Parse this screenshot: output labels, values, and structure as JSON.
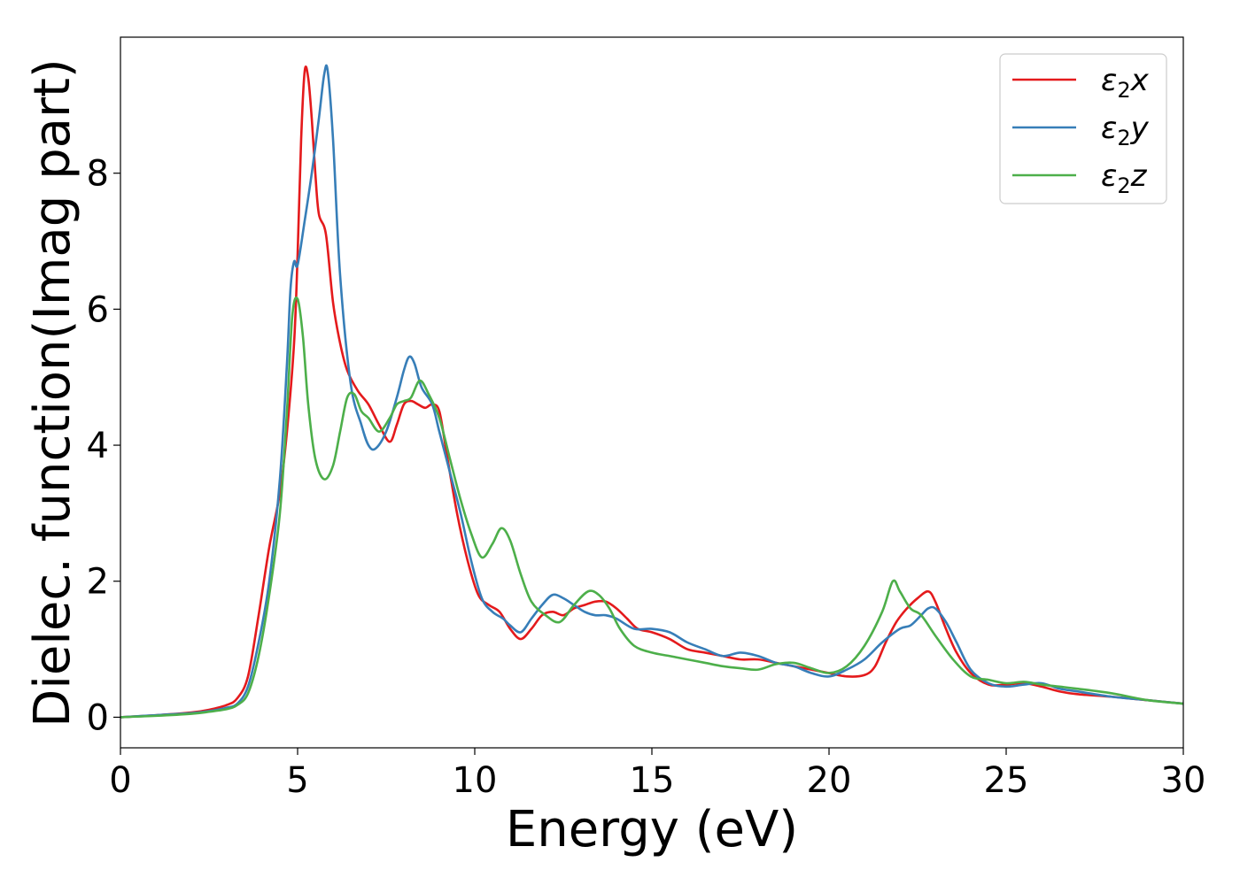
{
  "chart_data": {
    "type": "line",
    "xlabel": "Energy (eV)",
    "ylabel": "Dielec. function(Imag part)",
    "xlim": [
      0,
      30
    ],
    "ylim": [
      -0.45,
      10.0
    ],
    "xticks": [
      0,
      5,
      10,
      15,
      20,
      25,
      30
    ],
    "xtick_labels": [
      "0",
      "5",
      "10",
      "15",
      "20",
      "25",
      "30"
    ],
    "yticks": [
      0,
      2,
      4,
      6,
      8
    ],
    "ytick_labels": [
      "0",
      "2",
      "4",
      "6",
      "8"
    ],
    "grid": false,
    "legend_position": "top-right",
    "series": [
      {
        "name": "ε₂x",
        "legend_main": "ε",
        "legend_sub": "2",
        "legend_var": "x",
        "color": "#e41a1c",
        "x": [
          0,
          1,
          2,
          2.5,
          3,
          3.3,
          3.6,
          3.9,
          4.2,
          4.5,
          4.7,
          4.9,
          5.0,
          5.1,
          5.2,
          5.3,
          5.4,
          5.5,
          5.6,
          5.8,
          6.0,
          6.2,
          6.4,
          6.7,
          7.0,
          7.3,
          7.6,
          7.8,
          8.0,
          8.2,
          8.4,
          8.6,
          8.8,
          9.0,
          9.2,
          9.5,
          9.8,
          10.1,
          10.4,
          10.7,
          11.0,
          11.3,
          11.6,
          11.9,
          12.2,
          12.5,
          12.8,
          13.1,
          13.4,
          13.7,
          14.0,
          14.3,
          14.6,
          15.0,
          15.5,
          16.0,
          16.5,
          17.0,
          17.5,
          18.0,
          18.5,
          19.0,
          19.5,
          20.0,
          20.5,
          21.0,
          21.3,
          21.6,
          21.9,
          22.2,
          22.5,
          22.8,
          23.0,
          23.3,
          23.6,
          24.0,
          24.5,
          25.0,
          25.5,
          26.0,
          26.5,
          27.0,
          28.0,
          29.0,
          30.0
        ],
        "y": [
          0.0,
          0.03,
          0.07,
          0.11,
          0.18,
          0.28,
          0.6,
          1.5,
          2.5,
          3.3,
          4.2,
          5.5,
          6.8,
          8.5,
          9.5,
          9.4,
          8.8,
          8.0,
          7.4,
          7.1,
          6.1,
          5.5,
          5.1,
          4.8,
          4.6,
          4.3,
          4.05,
          4.3,
          4.6,
          4.65,
          4.6,
          4.55,
          4.6,
          4.5,
          3.9,
          3.0,
          2.3,
          1.8,
          1.65,
          1.55,
          1.3,
          1.15,
          1.3,
          1.5,
          1.55,
          1.5,
          1.6,
          1.65,
          1.7,
          1.7,
          1.6,
          1.45,
          1.3,
          1.25,
          1.15,
          1.0,
          0.95,
          0.9,
          0.85,
          0.85,
          0.8,
          0.75,
          0.7,
          0.65,
          0.6,
          0.62,
          0.75,
          1.1,
          1.4,
          1.6,
          1.75,
          1.85,
          1.7,
          1.3,
          0.95,
          0.65,
          0.48,
          0.48,
          0.5,
          0.45,
          0.38,
          0.34,
          0.3,
          0.25,
          0.2
        ]
      },
      {
        "name": "ε₂y",
        "legend_main": "ε",
        "legend_sub": "2",
        "legend_var": "y",
        "color": "#377eb8",
        "x": [
          0,
          1,
          2,
          2.5,
          3,
          3.3,
          3.6,
          3.9,
          4.2,
          4.5,
          4.7,
          4.8,
          4.9,
          5.0,
          5.2,
          5.4,
          5.6,
          5.75,
          5.85,
          6.0,
          6.2,
          6.5,
          6.8,
          7.0,
          7.2,
          7.5,
          7.8,
          8.0,
          8.15,
          8.3,
          8.5,
          8.8,
          9.0,
          9.3,
          9.6,
          9.9,
          10.2,
          10.5,
          10.8,
          11.0,
          11.3,
          11.6,
          11.9,
          12.2,
          12.5,
          12.8,
          13.1,
          13.4,
          13.7,
          14.0,
          14.5,
          15.0,
          15.5,
          16.0,
          16.5,
          17.0,
          17.5,
          18.0,
          18.5,
          19.0,
          19.5,
          20.0,
          20.5,
          21.0,
          21.5,
          22.0,
          22.3,
          22.6,
          22.8,
          23.0,
          23.3,
          23.6,
          24.0,
          24.5,
          25.0,
          25.5,
          26.0,
          26.5,
          27.0,
          28.0,
          29.0,
          30.0
        ],
        "y": [
          0.0,
          0.03,
          0.06,
          0.09,
          0.14,
          0.2,
          0.45,
          1.1,
          2.0,
          3.5,
          5.2,
          6.3,
          6.7,
          6.65,
          7.3,
          8.0,
          8.8,
          9.45,
          9.5,
          8.5,
          6.5,
          4.9,
          4.3,
          4.0,
          3.95,
          4.2,
          4.7,
          5.1,
          5.3,
          5.2,
          4.85,
          4.6,
          4.2,
          3.6,
          3.0,
          2.3,
          1.75,
          1.55,
          1.45,
          1.35,
          1.25,
          1.45,
          1.65,
          1.8,
          1.75,
          1.65,
          1.55,
          1.5,
          1.5,
          1.45,
          1.3,
          1.3,
          1.25,
          1.1,
          1.0,
          0.9,
          0.95,
          0.9,
          0.8,
          0.75,
          0.65,
          0.6,
          0.7,
          0.85,
          1.1,
          1.3,
          1.35,
          1.5,
          1.6,
          1.6,
          1.4,
          1.1,
          0.7,
          0.5,
          0.45,
          0.48,
          0.5,
          0.42,
          0.38,
          0.3,
          0.25,
          0.2
        ]
      },
      {
        "name": "ε₂z",
        "legend_main": "ε",
        "legend_sub": "2",
        "legend_var": "z",
        "color": "#4daf4a",
        "x": [
          0,
          1,
          2,
          2.5,
          3,
          3.3,
          3.6,
          3.9,
          4.2,
          4.5,
          4.7,
          4.85,
          5.0,
          5.15,
          5.3,
          5.5,
          5.75,
          6.0,
          6.2,
          6.4,
          6.6,
          6.8,
          7.0,
          7.3,
          7.6,
          7.8,
          8.0,
          8.2,
          8.45,
          8.7,
          9.0,
          9.3,
          9.6,
          9.9,
          10.2,
          10.5,
          10.75,
          11.0,
          11.3,
          11.6,
          12.0,
          12.4,
          12.8,
          13.2,
          13.5,
          13.8,
          14.1,
          14.5,
          15.0,
          15.5,
          16.0,
          16.5,
          17.0,
          17.5,
          18.0,
          18.5,
          19.0,
          19.5,
          20.0,
          20.5,
          21.0,
          21.5,
          21.8,
          22.0,
          22.3,
          22.6,
          23.0,
          23.5,
          24.0,
          24.5,
          25.0,
          25.5,
          26.0,
          26.5,
          27.0,
          28.0,
          29.0,
          30.0
        ],
        "y": [
          0.0,
          0.02,
          0.05,
          0.08,
          0.12,
          0.18,
          0.35,
          0.9,
          1.8,
          3.0,
          4.5,
          5.9,
          6.15,
          5.6,
          4.6,
          3.8,
          3.5,
          3.7,
          4.2,
          4.7,
          4.75,
          4.5,
          4.4,
          4.2,
          4.4,
          4.6,
          4.65,
          4.7,
          4.95,
          4.75,
          4.4,
          3.8,
          3.2,
          2.7,
          2.35,
          2.55,
          2.78,
          2.6,
          2.1,
          1.7,
          1.5,
          1.4,
          1.65,
          1.85,
          1.8,
          1.6,
          1.3,
          1.05,
          0.95,
          0.9,
          0.85,
          0.8,
          0.75,
          0.72,
          0.7,
          0.78,
          0.8,
          0.72,
          0.65,
          0.75,
          1.05,
          1.55,
          2.0,
          1.85,
          1.6,
          1.5,
          1.2,
          0.85,
          0.6,
          0.55,
          0.5,
          0.52,
          0.48,
          0.45,
          0.42,
          0.35,
          0.25,
          0.2
        ]
      }
    ]
  }
}
